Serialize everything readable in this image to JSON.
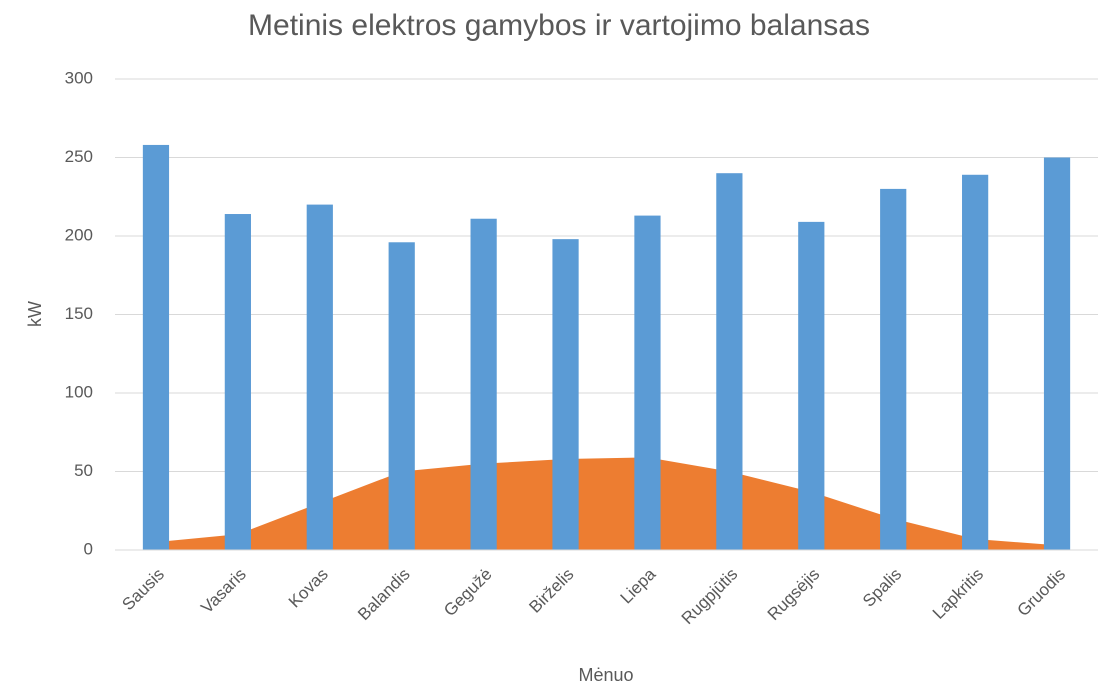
{
  "chart_data": {
    "type": "bar",
    "title": "Metinis elektros gamybos ir vartojimo balansas",
    "x_label": "Mėnuo",
    "y_label": "kW",
    "categories": [
      "Sausis",
      "Vasaris",
      "Kovas",
      "Balandis",
      "Gegužė",
      "Birželis",
      "Liepa",
      "Rugpjūtis",
      "Rugsėjis",
      "Spalis",
      "Lapkritis",
      "Gruodis"
    ],
    "series": [
      {
        "type": "area",
        "color": "#ed7d31",
        "values": [
          5,
          10,
          30,
          50,
          55,
          58,
          59,
          50,
          37,
          20,
          7,
          3
        ]
      },
      {
        "type": "bar",
        "color": "#5b9bd5",
        "values": [
          258,
          214,
          220,
          196,
          211,
          198,
          213,
          240,
          209,
          230,
          239,
          250
        ]
      }
    ],
    "ylim": [
      0,
      300
    ],
    "yticks": [
      0,
      50,
      100,
      150,
      200,
      250,
      300
    ],
    "grid": true
  }
}
